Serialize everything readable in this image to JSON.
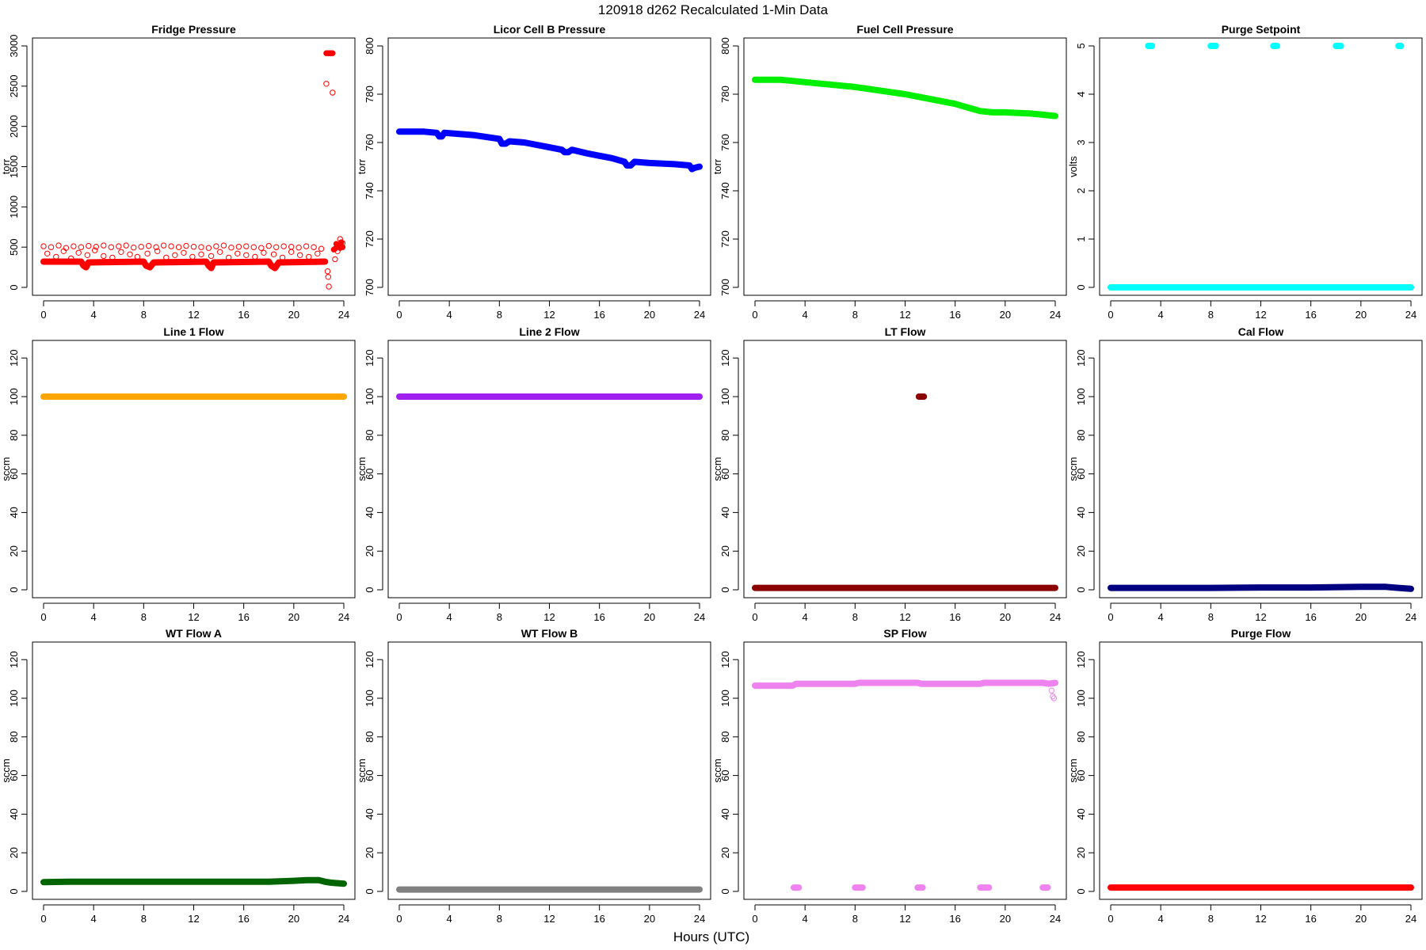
{
  "figure": {
    "title": "120918   d262   Recalculated 1-Min Data",
    "xlabel": "Hours (UTC)"
  },
  "chart_data": [
    {
      "type": "scatter",
      "title": "Fridge Pressure",
      "ylabel": "torr",
      "color": "#ff0000",
      "xlim": [
        0,
        24
      ],
      "ylim": [
        0,
        3000
      ],
      "xticks": [
        0,
        4,
        8,
        12,
        16,
        20,
        24
      ],
      "yticks": [
        0,
        500,
        1000,
        1500,
        2000,
        2500,
        3000
      ],
      "series": [
        {
          "style": "line",
          "x": [
            0,
            3,
            3.2,
            3.4,
            3.6,
            8,
            8.2,
            8.5,
            8.8,
            13,
            13.2,
            13.4,
            13.6,
            18,
            18.2,
            18.5,
            18.8,
            22.5
          ],
          "y": [
            320,
            320,
            270,
            250,
            310,
            320,
            270,
            250,
            310,
            320,
            270,
            240,
            310,
            320,
            270,
            240,
            310,
            320
          ]
        },
        {
          "style": "open",
          "x": [
            0,
            0.6,
            1.2,
            1.8,
            2.4,
            3,
            3.6,
            4.2,
            4.8,
            5.4,
            6,
            6.6,
            7.2,
            7.8,
            8.4,
            9,
            9.6,
            10.2,
            10.8,
            11.4,
            12,
            12.6,
            13.2,
            13.8,
            14.4,
            15,
            15.6,
            16.2,
            16.8,
            17.4,
            18,
            18.6,
            19.2,
            19.8,
            20.4,
            21,
            21.6,
            22.2
          ],
          "y": [
            510,
            500,
            520,
            490,
            510,
            500,
            515,
            505,
            520,
            500,
            510,
            520,
            495,
            505,
            515,
            500,
            520,
            510,
            500,
            515,
            505,
            500,
            490,
            510,
            520,
            495,
            505,
            510,
            500,
            490,
            515,
            500,
            510,
            505,
            495,
            510,
            500,
            480
          ]
        },
        {
          "style": "open",
          "x": [
            0.3,
            1,
            1.6,
            2.2,
            2.8,
            3.5,
            4.1,
            4.8,
            5.5,
            6.2,
            6.9,
            7.5,
            8.3,
            9.1,
            9.8,
            10.5,
            11.2,
            11.9,
            12.6,
            13.4,
            14.1,
            14.8,
            15.5,
            16.2,
            16.9,
            17.6,
            18.4,
            19.1,
            19.8,
            20.5,
            21.2,
            21.9
          ],
          "y": [
            420,
            380,
            450,
            360,
            430,
            400,
            460,
            390,
            370,
            440,
            410,
            380,
            420,
            450,
            370,
            400,
            430,
            380,
            410,
            390,
            440,
            370,
            420,
            400,
            380,
            430,
            410,
            370,
            440,
            400,
            380,
            420
          ]
        },
        {
          "style": "open",
          "x": [
            22.6,
            22.7,
            22.75,
            22.8,
            23.1,
            23.3,
            23.5,
            23.7,
            23.9
          ],
          "y": [
            2530,
            200,
            130,
            10,
            2420,
            350,
            450,
            600,
            550
          ]
        },
        {
          "style": "solid",
          "x": [
            22.6,
            22.7,
            22.8,
            22.9,
            23,
            23.1,
            23.2,
            23.3,
            23.4,
            23.5,
            23.6,
            23.7,
            23.8,
            23.9
          ],
          "y": [
            2910,
            2910,
            2910,
            2910,
            2910,
            2910,
            470,
            480,
            540,
            510,
            520,
            490,
            560,
            500
          ]
        }
      ]
    },
    {
      "type": "scatter",
      "title": "Licor Cell B Pressure",
      "ylabel": "torr",
      "color": "#0000ff",
      "xlim": [
        0,
        24
      ],
      "ylim": [
        700,
        800
      ],
      "xticks": [
        0,
        4,
        8,
        12,
        16,
        20,
        24
      ],
      "yticks": [
        700,
        720,
        740,
        760,
        780,
        800
      ],
      "series": [
        {
          "style": "line",
          "x": [
            0,
            2,
            3,
            3.2,
            3.4,
            3.6,
            6,
            8,
            8.2,
            8.5,
            8.8,
            10,
            12,
            13,
            13.2,
            13.5,
            13.8,
            15,
            16,
            17,
            18,
            18.2,
            18.5,
            18.8,
            20,
            22,
            23.2,
            23.4,
            23.6,
            24
          ],
          "y": [
            764.5,
            764.5,
            764,
            762.5,
            762.5,
            764,
            763,
            761.5,
            759.5,
            759.5,
            760.5,
            760,
            758,
            757,
            756,
            756,
            757,
            755.5,
            754.5,
            753.5,
            752,
            750.5,
            750.5,
            752,
            751.5,
            751,
            750.5,
            749,
            749.5,
            750
          ]
        }
      ]
    },
    {
      "type": "scatter",
      "title": "Fuel Cell Pressure",
      "ylabel": "torr",
      "color": "#00ee00",
      "xlim": [
        0,
        24
      ],
      "ylim": [
        700,
        800
      ],
      "xticks": [
        0,
        4,
        8,
        12,
        16,
        20,
        24
      ],
      "yticks": [
        700,
        720,
        740,
        760,
        780,
        800
      ],
      "series": [
        {
          "style": "line",
          "x": [
            0,
            1,
            2,
            3,
            4,
            6,
            8,
            10,
            12,
            14,
            16,
            17,
            18,
            19,
            20,
            22,
            23,
            24
          ],
          "y": [
            786,
            786,
            786,
            785.5,
            785,
            784,
            783,
            781.5,
            780,
            778,
            776,
            774.5,
            773,
            772.5,
            772.5,
            772,
            771.5,
            771
          ]
        }
      ]
    },
    {
      "type": "scatter",
      "title": "Purge Setpoint",
      "ylabel": "volts",
      "color": "#00ffff",
      "xlim": [
        0,
        24
      ],
      "ylim": [
        0,
        5
      ],
      "xticks": [
        0,
        4,
        8,
        12,
        16,
        20,
        24
      ],
      "yticks": [
        0,
        1,
        2,
        3,
        4,
        5
      ],
      "series": [
        {
          "style": "line",
          "x": [
            0,
            24
          ],
          "y": [
            0,
            0
          ]
        },
        {
          "style": "line",
          "x": [
            3,
            3.3
          ],
          "y": [
            5,
            5
          ]
        },
        {
          "style": "line",
          "x": [
            8,
            8.4
          ],
          "y": [
            5,
            5
          ]
        },
        {
          "style": "line",
          "x": [
            13,
            13.3
          ],
          "y": [
            5,
            5
          ]
        },
        {
          "style": "line",
          "x": [
            18,
            18.4
          ],
          "y": [
            5,
            5
          ]
        },
        {
          "style": "line",
          "x": [
            23,
            23.2
          ],
          "y": [
            5,
            5
          ]
        }
      ]
    },
    {
      "type": "scatter",
      "title": "Line 1 Flow",
      "ylabel": "sccm",
      "color": "#ffa500",
      "xlim": [
        0,
        24
      ],
      "ylim": [
        0,
        125
      ],
      "xticks": [
        0,
        4,
        8,
        12,
        16,
        20,
        24
      ],
      "yticks": [
        0,
        20,
        40,
        60,
        80,
        100,
        120
      ],
      "series": [
        {
          "style": "line",
          "x": [
            0,
            24
          ],
          "y": [
            100,
            100
          ]
        }
      ]
    },
    {
      "type": "scatter",
      "title": "Line 2 Flow",
      "ylabel": "sccm",
      "color": "#a020f0",
      "xlim": [
        0,
        24
      ],
      "ylim": [
        0,
        125
      ],
      "xticks": [
        0,
        4,
        8,
        12,
        16,
        20,
        24
      ],
      "yticks": [
        0,
        20,
        40,
        60,
        80,
        100,
        120
      ],
      "series": [
        {
          "style": "line",
          "x": [
            0,
            24
          ],
          "y": [
            100,
            100
          ]
        }
      ]
    },
    {
      "type": "scatter",
      "title": "LT Flow",
      "ylabel": "sccm",
      "color": "#8b0000",
      "xlim": [
        0,
        24
      ],
      "ylim": [
        0,
        125
      ],
      "xticks": [
        0,
        4,
        8,
        12,
        16,
        20,
        24
      ],
      "yticks": [
        0,
        20,
        40,
        60,
        80,
        100,
        120
      ],
      "series": [
        {
          "style": "line",
          "x": [
            0,
            24
          ],
          "y": [
            1,
            1
          ]
        },
        {
          "style": "line",
          "x": [
            13.1,
            13.5
          ],
          "y": [
            100,
            100
          ]
        }
      ]
    },
    {
      "type": "scatter",
      "title": "Cal Flow",
      "ylabel": "sccm",
      "color": "#000080",
      "xlim": [
        0,
        24
      ],
      "ylim": [
        0,
        125
      ],
      "xticks": [
        0,
        4,
        8,
        12,
        16,
        20,
        24
      ],
      "yticks": [
        0,
        20,
        40,
        60,
        80,
        100,
        120
      ],
      "series": [
        {
          "style": "line",
          "x": [
            0,
            4,
            8,
            12,
            16,
            20,
            22,
            23,
            24
          ],
          "y": [
            1,
            1,
            1,
            1.2,
            1.2,
            1.5,
            1.5,
            1,
            0.5
          ]
        }
      ]
    },
    {
      "type": "scatter",
      "title": "WT Flow A",
      "ylabel": "sccm",
      "color": "#006400",
      "xlim": [
        0,
        24
      ],
      "ylim": [
        0,
        125
      ],
      "xticks": [
        0,
        4,
        8,
        12,
        16,
        20,
        24
      ],
      "yticks": [
        0,
        20,
        40,
        60,
        80,
        100,
        120
      ],
      "series": [
        {
          "style": "line",
          "x": [
            0,
            2,
            4,
            8,
            12,
            16,
            18,
            20,
            21,
            22,
            22.5,
            23,
            24
          ],
          "y": [
            4.8,
            5,
            5,
            5,
            5,
            5,
            5,
            5.5,
            5.8,
            5.8,
            5,
            4.5,
            4
          ]
        }
      ]
    },
    {
      "type": "scatter",
      "title": "WT Flow B",
      "ylabel": "sccm",
      "color": "#808080",
      "xlim": [
        0,
        24
      ],
      "ylim": [
        0,
        125
      ],
      "xticks": [
        0,
        4,
        8,
        12,
        16,
        20,
        24
      ],
      "yticks": [
        0,
        20,
        40,
        60,
        80,
        100,
        120
      ],
      "series": [
        {
          "style": "line",
          "x": [
            0,
            24
          ],
          "y": [
            1,
            1
          ]
        }
      ]
    },
    {
      "type": "scatter",
      "title": "SP Flow",
      "ylabel": "sccm",
      "color": "#ee82ee",
      "xlim": [
        0,
        24
      ],
      "ylim": [
        0,
        125
      ],
      "xticks": [
        0,
        4,
        8,
        12,
        16,
        20,
        24
      ],
      "yticks": [
        0,
        20,
        40,
        60,
        80,
        100,
        120
      ],
      "series": [
        {
          "style": "line",
          "x": [
            0,
            3,
            3.3,
            8,
            8.3,
            13,
            13.3,
            18,
            18.3,
            23,
            23.5,
            24
          ],
          "y": [
            106.5,
            106.5,
            107.5,
            107.5,
            108,
            108,
            107.5,
            107.5,
            108,
            108,
            107.5,
            108
          ]
        },
        {
          "style": "line",
          "x": [
            3.1,
            3.5
          ],
          "y": [
            2,
            2
          ]
        },
        {
          "style": "line",
          "x": [
            8,
            8.6
          ],
          "y": [
            2,
            2
          ]
        },
        {
          "style": "line",
          "x": [
            13,
            13.4
          ],
          "y": [
            2,
            2
          ]
        },
        {
          "style": "line",
          "x": [
            18,
            18.7
          ],
          "y": [
            2,
            2
          ]
        },
        {
          "style": "line",
          "x": [
            23,
            23.4
          ],
          "y": [
            2,
            2
          ]
        },
        {
          "style": "open",
          "x": [
            23.7,
            23.8,
            23.9
          ],
          "y": [
            104,
            101,
            100
          ]
        }
      ]
    },
    {
      "type": "scatter",
      "title": "Purge Flow",
      "ylabel": "sccm",
      "color": "#ff0000",
      "xlim": [
        0,
        24
      ],
      "ylim": [
        0,
        125
      ],
      "xticks": [
        0,
        4,
        8,
        12,
        16,
        20,
        24
      ],
      "yticks": [
        0,
        20,
        40,
        60,
        80,
        100,
        120
      ],
      "series": [
        {
          "style": "line",
          "x": [
            0,
            24
          ],
          "y": [
            2,
            2
          ]
        }
      ]
    }
  ]
}
